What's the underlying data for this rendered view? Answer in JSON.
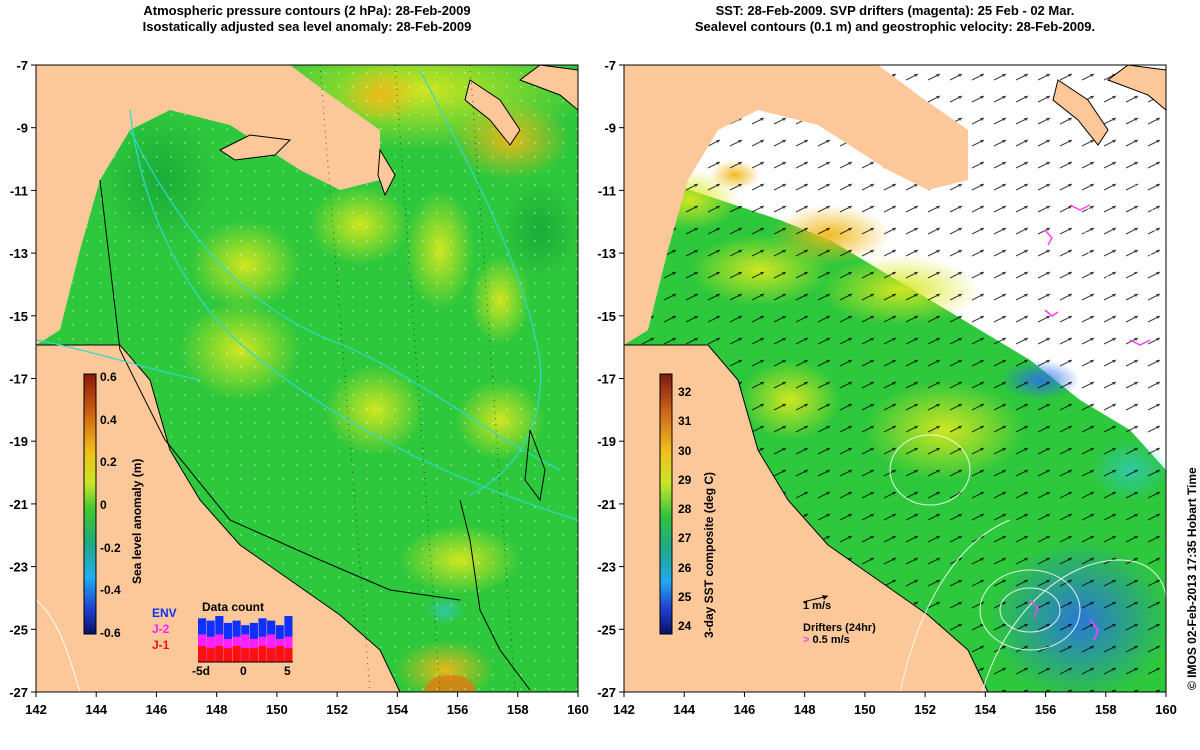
{
  "left_panel": {
    "title_line1": "Atmospheric pressure contours (2 hPa): 28-Feb-2009",
    "title_line2": "Isostatically adjusted sea level anomaly: 28-Feb-2009",
    "colorbar": {
      "label": "Sea level anomaly (m)",
      "ticks": [
        "0.6",
        "0.4",
        "0.2",
        "0",
        "-0.2",
        "-0.4",
        "-0.6"
      ]
    },
    "missions": [
      {
        "label": "ENV",
        "color": "#1030ff"
      },
      {
        "label": "J-2",
        "color": "#ff20ff"
      },
      {
        "label": "J-1",
        "color": "#ff1010"
      }
    ],
    "data_count": {
      "title": "Data count",
      "x_ticks": [
        "-5d",
        "0",
        "5"
      ],
      "bars_env": [
        0.95,
        0.9,
        1.0,
        0.85,
        0.9,
        0.8,
        0.85,
        0.95,
        0.9,
        0.8,
        1.0
      ],
      "bars_j2": [
        0.6,
        0.55,
        0.6,
        0.5,
        0.55,
        0.6,
        0.5,
        0.55,
        0.6,
        0.5,
        0.55
      ],
      "bars_j1": [
        0.35,
        0.3,
        0.35,
        0.3,
        0.35,
        0.3,
        0.3,
        0.35,
        0.3,
        0.35,
        0.3
      ]
    }
  },
  "right_panel": {
    "title_line1": "SST: 28-Feb-2009. SVP drifters (magenta): 25 Feb - 02 Mar.",
    "title_line2": "Sealevel contours (0.1 m) and geostrophic velocity: 28-Feb-2009.",
    "colorbar": {
      "label": "3-day SST composite (deg C)",
      "ticks": [
        "32",
        "31",
        "30",
        "29",
        "28",
        "27",
        "26",
        "25",
        "24"
      ]
    },
    "velocity_legend": "1 m/s",
    "drifter_legend_title": "Drifters (24hr)",
    "drifter_legend_value": "0.5 m/s"
  },
  "axes": {
    "x_ticks": [
      "142",
      "144",
      "146",
      "148",
      "150",
      "152",
      "154",
      "156",
      "158",
      "160"
    ],
    "y_ticks": [
      "-7",
      "-9",
      "-11",
      "-13",
      "-15",
      "-17",
      "-19",
      "-21",
      "-23",
      "-25",
      "-27"
    ]
  },
  "credit": "© IMOS 02-Feb-2013 17:35 Hobart Time",
  "colors": {
    "land": "#fcc899",
    "ocean_green": "#2ec83c",
    "ocean_yellow": "#c8e628",
    "cloud": "#ffffff",
    "drifter": "#ff40ff"
  }
}
